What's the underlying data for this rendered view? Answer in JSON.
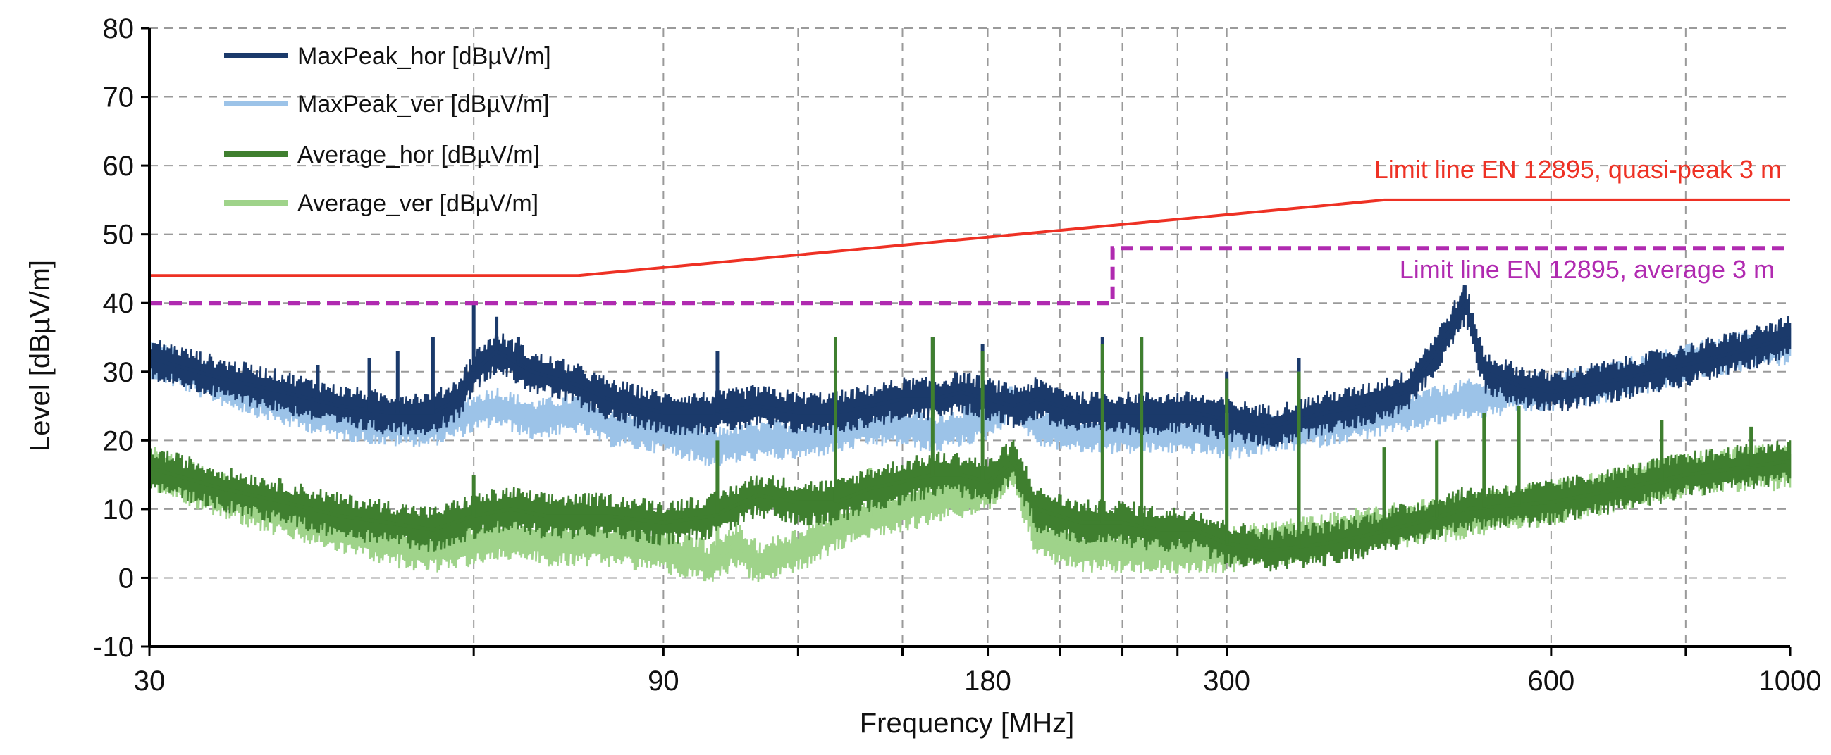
{
  "chart_data": {
    "type": "line",
    "title": "",
    "xlabel": "Frequency [MHz]",
    "ylabel": "Level [dBµV/m]",
    "xscale": "log",
    "xlim": [
      30,
      1000
    ],
    "ylim": [
      -10,
      80
    ],
    "grid": true,
    "legend_position": "top-left",
    "x_ticks": [
      30,
      90,
      180,
      300,
      600,
      1000
    ],
    "x_tick_labels": [
      "30",
      "90",
      "180",
      "300",
      "600",
      "1000"
    ],
    "x_minor_gridlines": [
      60,
      120,
      150,
      210,
      240,
      270,
      800
    ],
    "y_ticks": [
      -10,
      0,
      10,
      20,
      30,
      40,
      50,
      60,
      70,
      80
    ],
    "y_tick_labels": [
      "-10",
      "0",
      "10",
      "20",
      "30",
      "40",
      "50",
      "60",
      "70",
      "80"
    ],
    "colors": {
      "maxpeak_hor": "#1b3a6b",
      "maxpeak_ver": "#9cc3e8",
      "average_hor": "#3f7f2f",
      "average_ver": "#9fd38a",
      "limit_qp": "#ee3124",
      "limit_avg": "#b02ab0"
    },
    "series": [
      {
        "name": "MaxPeak_hor [dBµV/m]",
        "key": "maxpeak_hor",
        "x": [
          30,
          35,
          40,
          45,
          50,
          55,
          58,
          60,
          63,
          68,
          75,
          80,
          90,
          100,
          110,
          120,
          130,
          140,
          150,
          160,
          170,
          180,
          190,
          200,
          220,
          240,
          260,
          280,
          300,
          330,
          370,
          400,
          440,
          470,
          500,
          520,
          560,
          600,
          700,
          800,
          900,
          1000
        ],
        "y": [
          32,
          29,
          27,
          25,
          24,
          24,
          26,
          30,
          33,
          30,
          28,
          26,
          24,
          24,
          25,
          24,
          24,
          25,
          26,
          26,
          27,
          26,
          25,
          26,
          24,
          24,
          24,
          24,
          23,
          22,
          24,
          25,
          27,
          33,
          40,
          30,
          28,
          27,
          29,
          31,
          33,
          35
        ],
        "spikes": [
          [
            43,
            31
          ],
          [
            48,
            32
          ],
          [
            51,
            33
          ],
          [
            55,
            35
          ],
          [
            60,
            40
          ],
          [
            63,
            38
          ],
          [
            66,
            35
          ],
          [
            101,
            33
          ],
          [
            130,
            35
          ],
          [
            160,
            35
          ],
          [
            178,
            34
          ],
          [
            230,
            35
          ],
          [
            250,
            35
          ],
          [
            300,
            30
          ],
          [
            350,
            32
          ]
        ]
      },
      {
        "name": "MaxPeak_ver [dBµV/m]",
        "key": "maxpeak_ver",
        "x": [
          30,
          35,
          40,
          45,
          50,
          55,
          60,
          63,
          68,
          75,
          80,
          90,
          100,
          110,
          120,
          130,
          140,
          150,
          160,
          170,
          180,
          190,
          200,
          220,
          240,
          260,
          280,
          300,
          330,
          370,
          400,
          440,
          470,
          500,
          520,
          560,
          600,
          700,
          800,
          900,
          1000
        ],
        "y": [
          32,
          28,
          25,
          23,
          22,
          22,
          24,
          25,
          23,
          24,
          22,
          21,
          19,
          20,
          20,
          21,
          22,
          22,
          21,
          22,
          23,
          26,
          22,
          21,
          21,
          21,
          21,
          20,
          21,
          22,
          23,
          24,
          25,
          26,
          26,
          27,
          27,
          29,
          31,
          33,
          34
        ],
        "spikes": []
      },
      {
        "name": "Average_hor [dBµV/m]",
        "key": "average_hor",
        "x": [
          30,
          35,
          40,
          45,
          50,
          55,
          60,
          65,
          70,
          80,
          90,
          100,
          110,
          120,
          130,
          140,
          150,
          160,
          170,
          180,
          190,
          200,
          220,
          240,
          260,
          280,
          300,
          330,
          370,
          400,
          450,
          500,
          600,
          700,
          800,
          900,
          1000
        ],
        "y": [
          16,
          13,
          11,
          9,
          8,
          7,
          9,
          10,
          9,
          9,
          8,
          9,
          12,
          11,
          11,
          13,
          14,
          15,
          15,
          14,
          17,
          10,
          8,
          8,
          7,
          7,
          5,
          4,
          5,
          6,
          8,
          10,
          11,
          13,
          15,
          16,
          17
        ],
        "spikes": [
          [
            60,
            15
          ],
          [
            101,
            20
          ],
          [
            130,
            35
          ],
          [
            160,
            35
          ],
          [
            178,
            33
          ],
          [
            230,
            34
          ],
          [
            250,
            35
          ],
          [
            300,
            29
          ],
          [
            350,
            30
          ],
          [
            420,
            19
          ],
          [
            470,
            20
          ],
          [
            520,
            24
          ],
          [
            560,
            25
          ],
          [
            760,
            23
          ],
          [
            920,
            22
          ]
        ]
      },
      {
        "name": "Average_ver [dBµV/m]",
        "key": "average_ver",
        "x": [
          30,
          35,
          40,
          45,
          50,
          55,
          60,
          65,
          70,
          80,
          90,
          100,
          105,
          110,
          120,
          130,
          140,
          150,
          160,
          170,
          180,
          190,
          200,
          220,
          240,
          260,
          280,
          300,
          330,
          370,
          400,
          450,
          500,
          600,
          700,
          800,
          900,
          1000
        ],
        "y": [
          16,
          12,
          9,
          7,
          5,
          4,
          5,
          6,
          5,
          5,
          4,
          2,
          5,
          2,
          4,
          7,
          9,
          10,
          11,
          12,
          13,
          16,
          6,
          4,
          4,
          4,
          4,
          4,
          5,
          6,
          7,
          8,
          9,
          11,
          13,
          15,
          16,
          16
        ],
        "spikes": [
          [
            101,
            19
          ],
          [
            140,
            16
          ],
          [
            300,
            24
          ],
          [
            350,
            30
          ],
          [
            420,
            19
          ],
          [
            470,
            20
          ],
          [
            520,
            24
          ],
          [
            560,
            25
          ],
          [
            760,
            23
          ]
        ]
      }
    ],
    "limit_lines": [
      {
        "name": "Limit line EN 12895, quasi-peak 3 m",
        "key": "limit_qp",
        "style": "solid",
        "x": [
          30,
          75,
          420,
          1000
        ],
        "y": [
          44,
          44,
          55,
          55
        ]
      },
      {
        "name": "Limit line EN 12895, average 3 m",
        "key": "limit_avg",
        "style": "dashed",
        "x": [
          30,
          235,
          235,
          1000
        ],
        "y": [
          40,
          40,
          48,
          48
        ]
      }
    ]
  }
}
